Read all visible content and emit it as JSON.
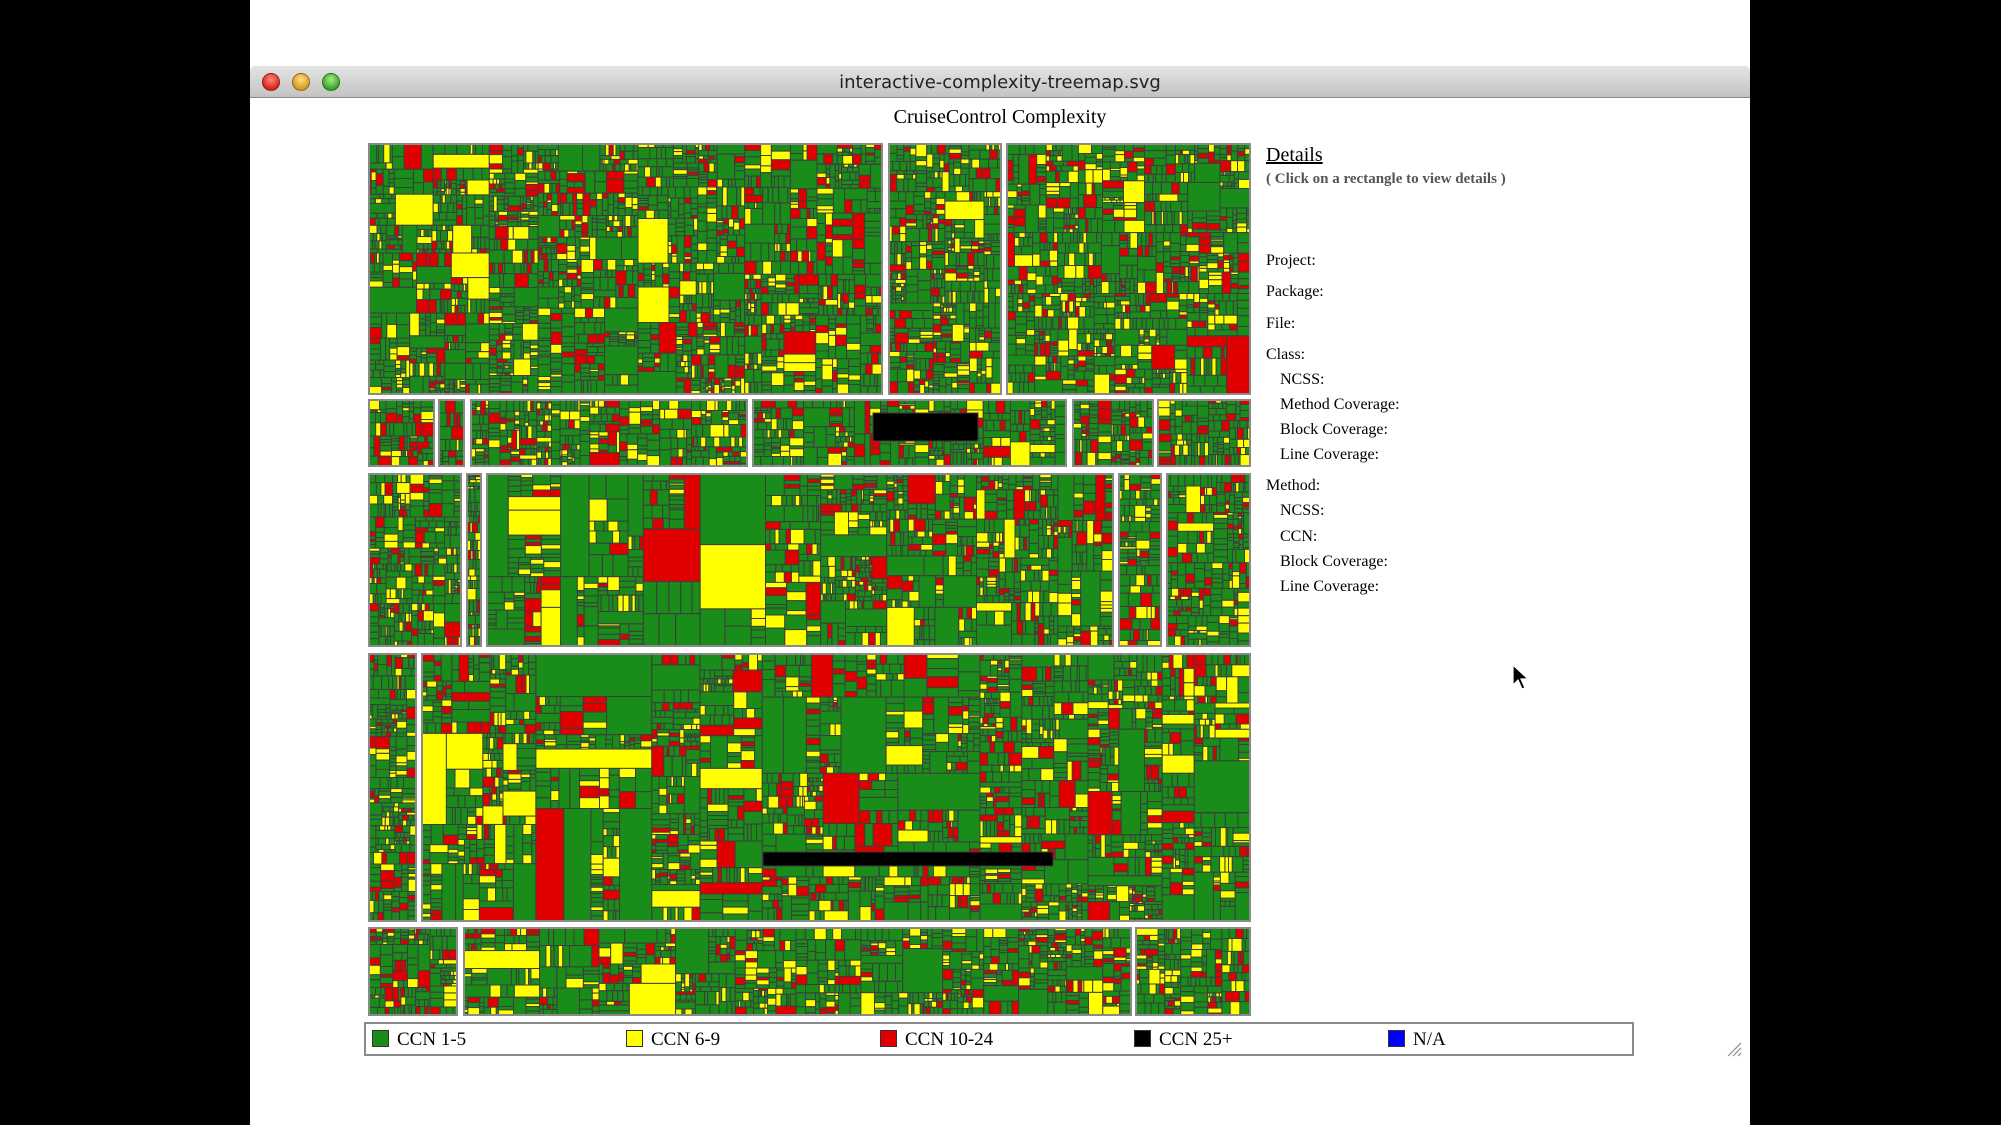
{
  "window": {
    "title": "interactive-complexity-treemap.svg",
    "buttons": [
      "close",
      "minimize",
      "zoom"
    ]
  },
  "page": {
    "title": "CruiseControl Complexity"
  },
  "details": {
    "title": "Details",
    "hint": "( Click on a rectangle to view details )",
    "fields": [
      {
        "label": "Project:",
        "indent": false
      },
      {
        "label": "Package:",
        "indent": false
      },
      {
        "label": "File:",
        "indent": false
      },
      {
        "label": "Class:",
        "indent": false
      },
      {
        "label": "NCSS:",
        "indent": true
      },
      {
        "label": "Method Coverage:",
        "indent": true
      },
      {
        "label": "Block Coverage:",
        "indent": true
      },
      {
        "label": "Line Coverage:",
        "indent": true
      },
      {
        "label": "Method:",
        "indent": false
      },
      {
        "label": "NCSS:",
        "indent": true
      },
      {
        "label": "CCN:",
        "indent": true
      },
      {
        "label": "Block Coverage:",
        "indent": true
      },
      {
        "label": "Line Coverage:",
        "indent": true
      }
    ]
  },
  "legend": {
    "items": [
      {
        "label": "CCN 1-5",
        "color": "#1a8c1a"
      },
      {
        "label": "CCN 6-9",
        "color": "#ffff00"
      },
      {
        "label": "CCN 10-24",
        "color": "#e00000"
      },
      {
        "label": "CCN 25+",
        "color": "#000000"
      },
      {
        "label": "N/A",
        "color": "#0000ff"
      }
    ]
  },
  "colors": {
    "green": "#1a8c1a",
    "yellow": "#ffff00",
    "red": "#e00000",
    "black": "#000000",
    "border": "#3d3d3d"
  },
  "icons": {
    "cursor": "mouse-pointer-icon",
    "resize": "resize-grip-icon"
  }
}
